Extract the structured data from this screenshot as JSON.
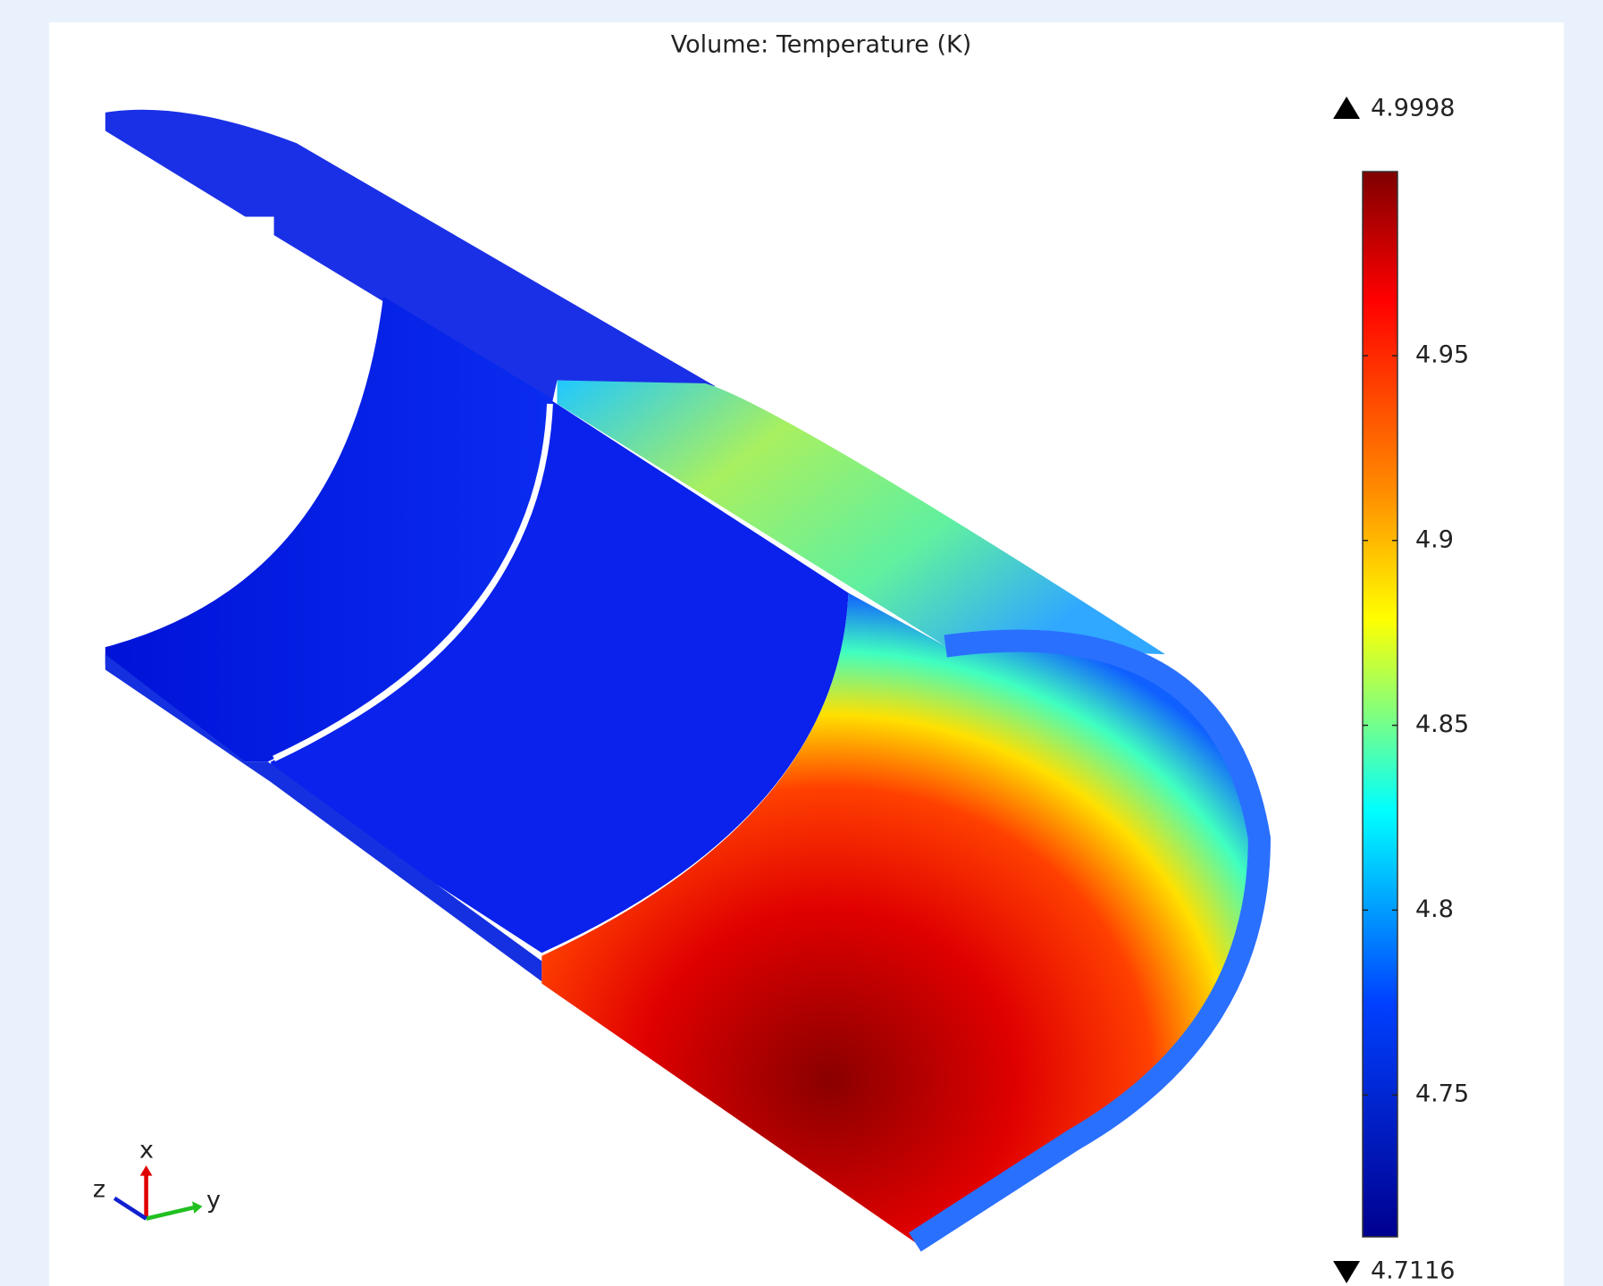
{
  "chart_data": {
    "type": "volume",
    "title": "Volume: Temperature (K)",
    "colorbar": {
      "lim": [
        4.7116,
        4.9998
      ],
      "ticks": [
        4.75,
        4.8,
        4.85,
        4.9,
        4.95
      ]
    },
    "axes_labels": {
      "x": "x",
      "y": "y",
      "z": "z"
    }
  }
}
